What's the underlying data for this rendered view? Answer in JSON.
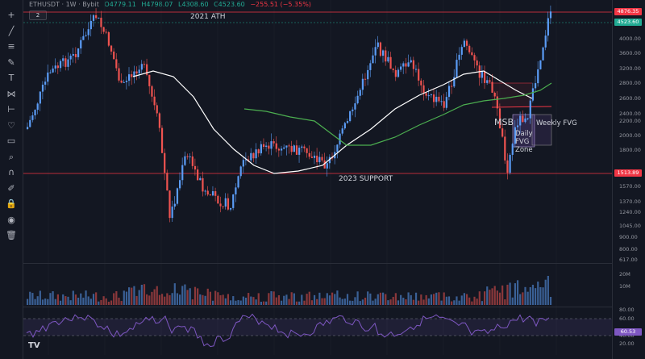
{
  "header": {
    "symbol": "ETHUSDT · 1W · Bybit",
    "open": "O4779.11",
    "high": "H4798.07",
    "low": "L4308.60",
    "close": "C4523.60",
    "change": "−255.51 (−5.35%)",
    "indicator_count": "2"
  },
  "annotations": {
    "ath": "2021 ATH",
    "support": "2023 SUPPORT",
    "msb": "MSB",
    "daily_fvg": "Daily FVG Zone",
    "weekly_fvg": "Weekly FVG"
  },
  "price_tags": {
    "ath": "4876.35",
    "current": "4523.60",
    "support": "1513.89"
  },
  "price_ticks": [
    "4000.00",
    "3600.00",
    "3200.00",
    "2800.00",
    "2600.00",
    "2400.00",
    "2200.00",
    "2000.00",
    "1800.00",
    "1570.00",
    "1370.00",
    "1240.00",
    "1045.00",
    "900.00",
    "800.00",
    "617.00"
  ],
  "volume_ticks": [
    "20M",
    "10M"
  ],
  "rsi_ticks": [
    "80.00",
    "60.00",
    "40.00",
    "20.00"
  ],
  "rsi_value": "60.53",
  "colors": {
    "bull": "#5b9cf6",
    "bear": "#ef5350",
    "ema_white": "#ffffff",
    "ema_green": "#4caf50",
    "rsi": "#7e57c2",
    "level": "#f23645"
  },
  "toolbar_icons": [
    "crosshair-icon",
    "trendline-icon",
    "fib-icon",
    "brush-icon",
    "text-icon",
    "pattern-icon",
    "measure-icon",
    "heart-icon",
    "ruler-icon",
    "zoom-icon",
    "magnet-icon",
    "pencil-lock-icon",
    "lock-icon",
    "eye-icon",
    "trash-icon"
  ]
}
